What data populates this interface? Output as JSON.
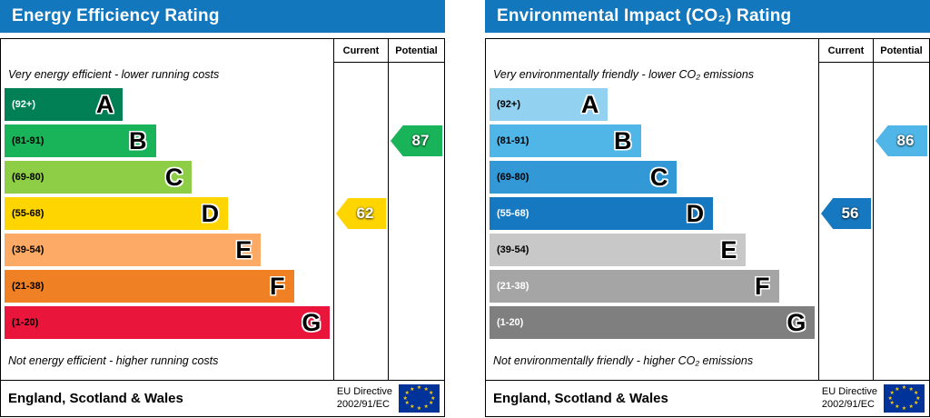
{
  "chart_data": [
    {
      "type": "bar",
      "variant": "epc-energy-efficiency-rating",
      "title": "Energy Efficiency Rating",
      "header_color": "#1277bd",
      "column_headers": [
        "Current",
        "Potential"
      ],
      "top_note": "Very energy efficient - lower running costs",
      "bottom_note": "Not energy efficient - higher running costs",
      "bands": [
        {
          "letter": "A",
          "range": "(92+)",
          "color": "#008054",
          "range_color": "#ffffff",
          "width_pct": 36
        },
        {
          "letter": "B",
          "range": "(81-91)",
          "color": "#19b459",
          "range_color": "#000000",
          "width_pct": 46
        },
        {
          "letter": "C",
          "range": "(69-80)",
          "color": "#8dce46",
          "range_color": "#000000",
          "width_pct": 57
        },
        {
          "letter": "D",
          "range": "(55-68)",
          "color": "#ffd500",
          "range_color": "#000000",
          "width_pct": 68
        },
        {
          "letter": "E",
          "range": "(39-54)",
          "color": "#fcaa65",
          "range_color": "#000000",
          "width_pct": 78
        },
        {
          "letter": "F",
          "range": "(21-38)",
          "color": "#ef8023",
          "range_color": "#000000",
          "width_pct": 88
        },
        {
          "letter": "G",
          "range": "(1-20)",
          "color": "#e9153b",
          "range_color": "#000000",
          "width_pct": 99
        }
      ],
      "current": {
        "value": 62,
        "band_index": 3,
        "band_letter": "D"
      },
      "potential": {
        "value": 87,
        "band_index": 1,
        "band_letter": "B"
      },
      "footer": {
        "region": "England, Scotland & Wales",
        "directive": [
          "EU Directive",
          "2002/91/EC"
        ]
      }
    },
    {
      "type": "bar",
      "variant": "epc-environmental-impact-co2-rating",
      "title": "Environmental Impact (CO₂) Rating",
      "header_color": "#1277bd",
      "column_headers": [
        "Current",
        "Potential"
      ],
      "top_note": "Very environmentally friendly - lower CO₂ emissions",
      "bottom_note": "Not environmentally friendly - higher CO₂ emissions",
      "bands": [
        {
          "letter": "A",
          "range": "(92+)",
          "color": "#92d1f0",
          "range_color": "#000000",
          "width_pct": 36
        },
        {
          "letter": "B",
          "range": "(81-91)",
          "color": "#4fb6e7",
          "range_color": "#000000",
          "width_pct": 46
        },
        {
          "letter": "C",
          "range": "(69-80)",
          "color": "#3399d6",
          "range_color": "#000000",
          "width_pct": 57
        },
        {
          "letter": "D",
          "range": "(55-68)",
          "color": "#1678c0",
          "range_color": "#ffffff",
          "width_pct": 68
        },
        {
          "letter": "E",
          "range": "(39-54)",
          "color": "#c8c8c8",
          "range_color": "#000000",
          "width_pct": 78
        },
        {
          "letter": "F",
          "range": "(21-38)",
          "color": "#a5a5a5",
          "range_color": "#ffffff",
          "width_pct": 88
        },
        {
          "letter": "G",
          "range": "(1-20)",
          "color": "#7f7f7f",
          "range_color": "#ffffff",
          "width_pct": 99
        }
      ],
      "current": {
        "value": 56,
        "band_index": 3,
        "band_letter": "D"
      },
      "potential": {
        "value": 86,
        "band_index": 1,
        "band_letter": "B"
      },
      "footer": {
        "region": "England, Scotland & Wales",
        "directive": [
          "EU Directive",
          "2002/91/EC"
        ]
      }
    }
  ]
}
